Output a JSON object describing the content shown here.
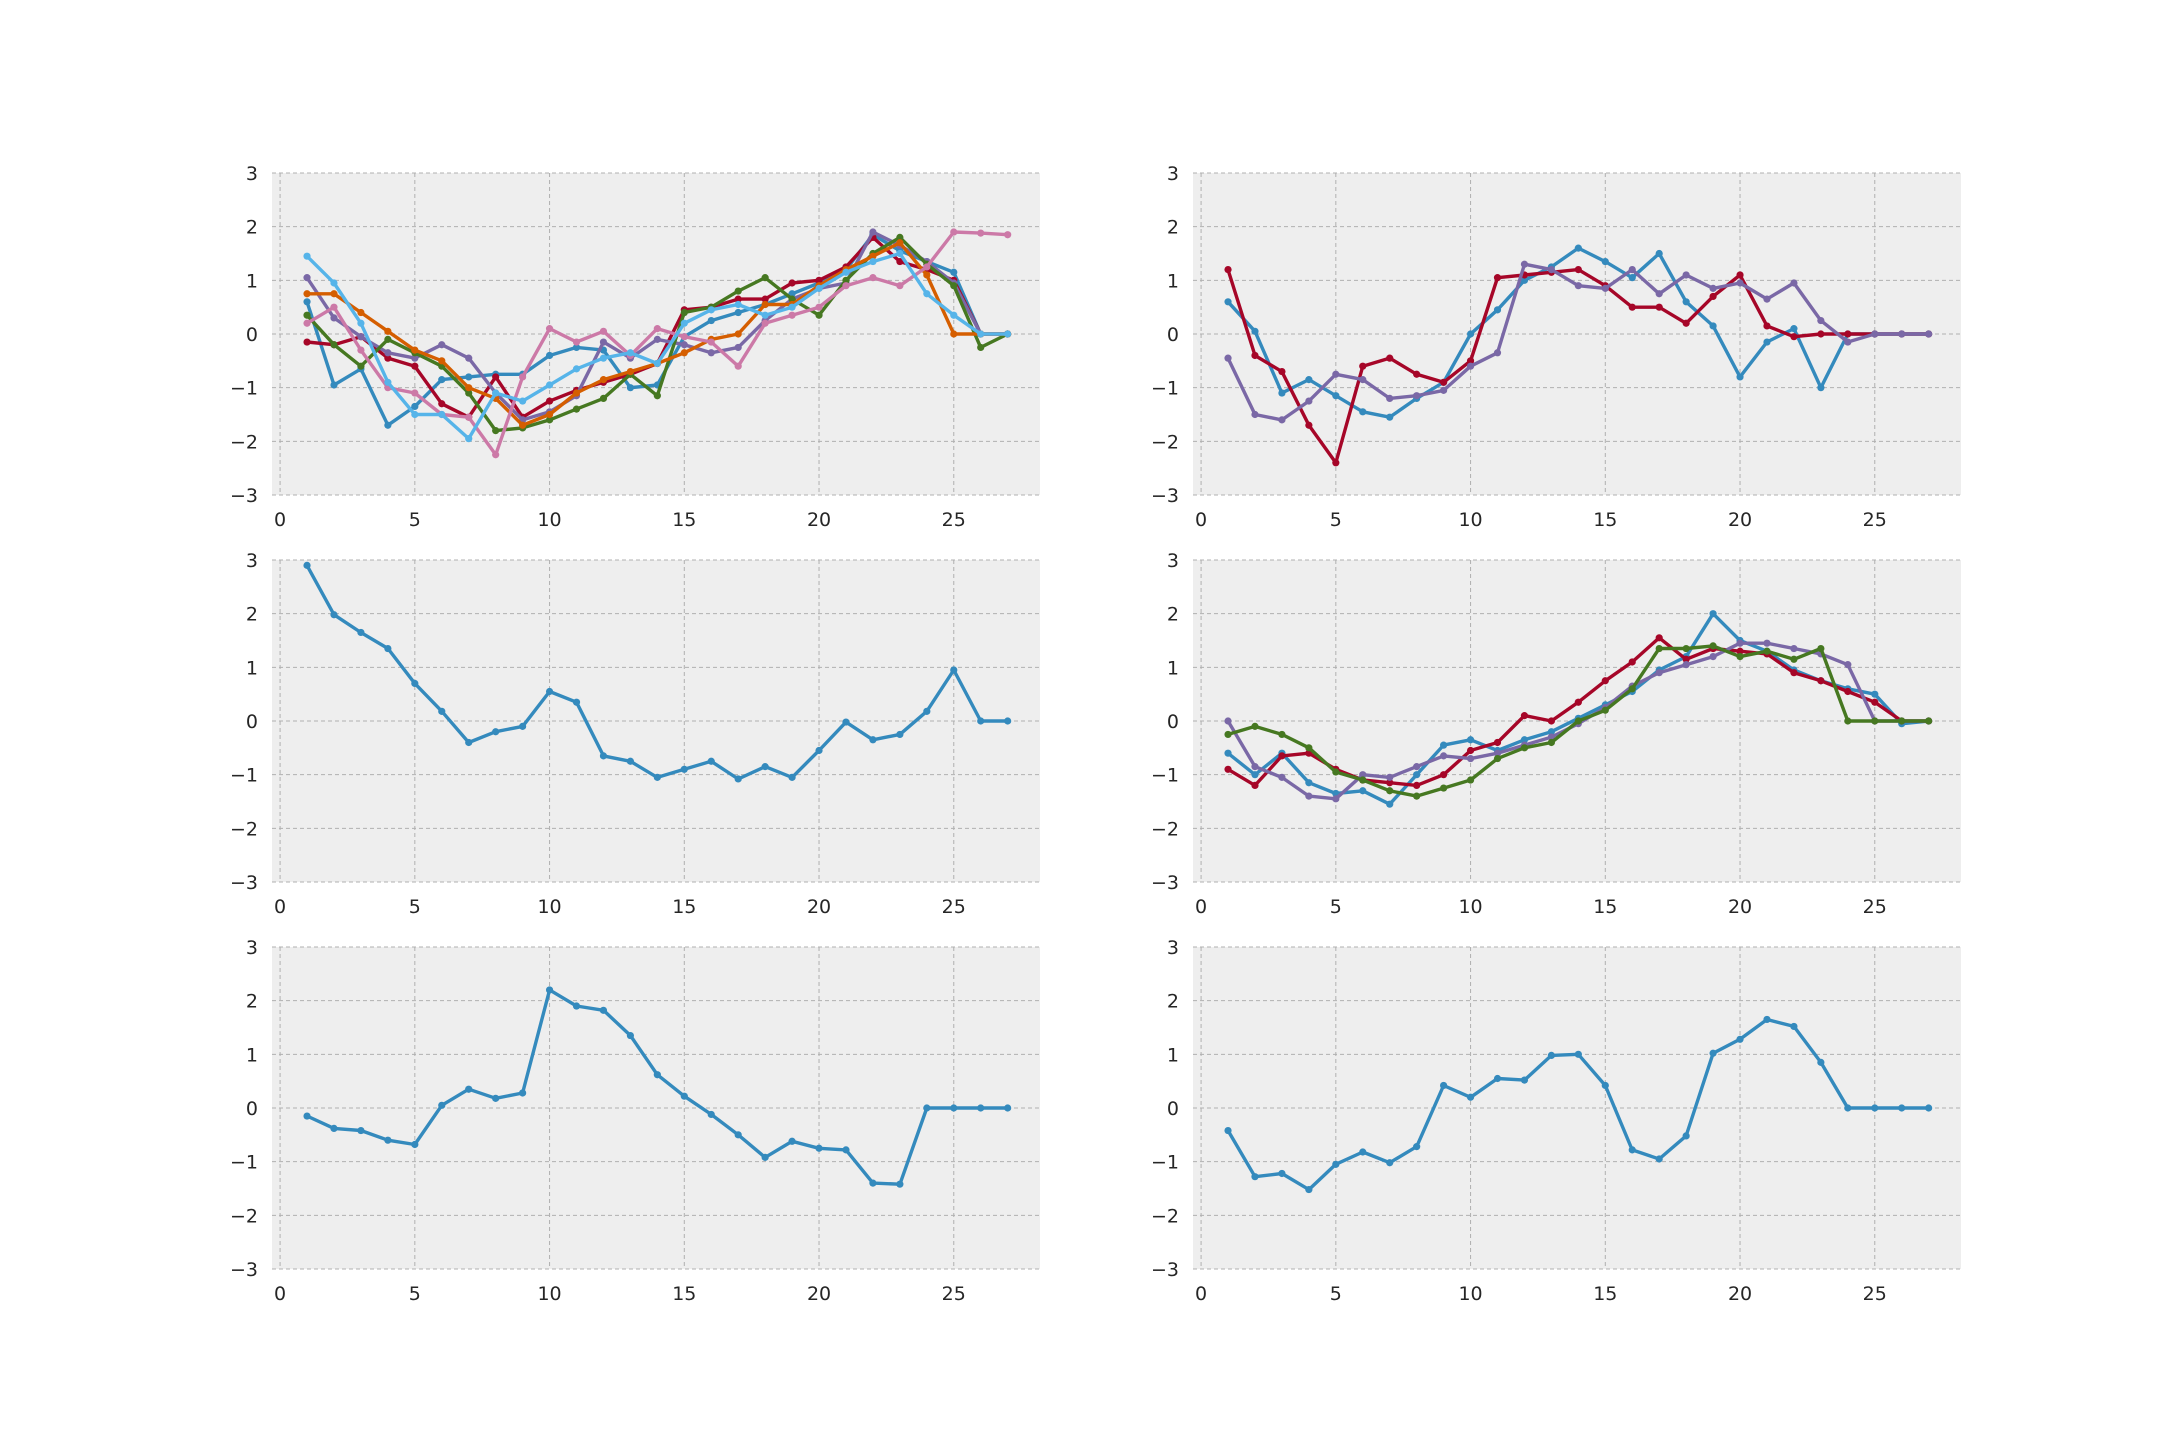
{
  "chart_data": [
    {
      "type": "line",
      "xlim": [
        -0.3,
        28.2
      ],
      "ylim": [
        -3,
        3
      ],
      "xticks": [
        0,
        5,
        10,
        15,
        20,
        25
      ],
      "yticks": [
        -3,
        -2,
        -1,
        0,
        1,
        2,
        3
      ],
      "grid": true,
      "series": [
        {
          "color": "#348ABD",
          "x": [
            1,
            2,
            3,
            4,
            5,
            6,
            7,
            8,
            9,
            10,
            11,
            12,
            13,
            14,
            15,
            16,
            17,
            18,
            19,
            20,
            21,
            22,
            23,
            24,
            25,
            26,
            27
          ],
          "y": [
            0.6,
            -0.95,
            -0.65,
            -1.7,
            -1.35,
            -0.85,
            -0.8,
            -0.75,
            -0.75,
            -0.4,
            -0.25,
            -0.3,
            -1.0,
            -0.95,
            -0.05,
            0.25,
            0.4,
            0.55,
            0.75,
            0.95,
            1.2,
            1.85,
            1.55,
            1.35,
            1.15,
            0.0,
            0.0
          ]
        },
        {
          "color": "#A60628",
          "x": [
            1,
            2,
            3,
            4,
            5,
            6,
            7,
            8,
            9,
            10,
            11,
            12,
            13,
            14,
            15,
            16,
            17,
            18,
            19,
            20,
            21,
            22,
            23,
            24,
            25,
            26,
            27
          ],
          "y": [
            -0.15,
            -0.2,
            -0.05,
            -0.45,
            -0.6,
            -1.3,
            -1.55,
            -0.8,
            -1.55,
            -1.25,
            -1.05,
            -0.9,
            -0.75,
            -0.55,
            0.45,
            0.5,
            0.65,
            0.65,
            0.95,
            1.0,
            1.25,
            1.8,
            1.35,
            1.2,
            1.0,
            0.0,
            0.0
          ]
        },
        {
          "color": "#7A68A6",
          "x": [
            1,
            2,
            3,
            4,
            5,
            6,
            7,
            8,
            9,
            10,
            11,
            12,
            13,
            14,
            15,
            16,
            17,
            18,
            19,
            20,
            21,
            22,
            23,
            24,
            25,
            26,
            27
          ],
          "y": [
            1.05,
            0.3,
            -0.05,
            -0.35,
            -0.45,
            -0.2,
            -0.45,
            -1.1,
            -1.6,
            -1.45,
            -1.15,
            -0.15,
            -0.45,
            -0.1,
            -0.2,
            -0.35,
            -0.25,
            0.25,
            0.65,
            0.85,
            0.95,
            1.9,
            1.65,
            1.35,
            0.95,
            0.0,
            0.0
          ]
        },
        {
          "color": "#467821",
          "x": [
            1,
            2,
            3,
            4,
            5,
            6,
            7,
            8,
            9,
            10,
            11,
            12,
            13,
            14,
            15,
            16,
            17,
            18,
            19,
            20,
            21,
            22,
            23,
            24,
            25,
            26,
            27
          ],
          "y": [
            0.35,
            -0.2,
            -0.6,
            -0.1,
            -0.35,
            -0.6,
            -1.1,
            -1.8,
            -1.75,
            -1.6,
            -1.4,
            -1.2,
            -0.75,
            -1.15,
            0.4,
            0.5,
            0.8,
            1.05,
            0.65,
            0.35,
            1.0,
            1.5,
            1.8,
            1.3,
            0.9,
            -0.25,
            0.0
          ]
        },
        {
          "color": "#D55E00",
          "x": [
            1,
            2,
            3,
            4,
            5,
            6,
            7,
            8,
            9,
            10,
            11,
            12,
            13,
            14,
            15,
            16,
            17,
            18,
            19,
            20,
            21,
            22,
            23,
            24,
            25,
            26,
            27
          ],
          "y": [
            0.75,
            0.75,
            0.4,
            0.05,
            -0.3,
            -0.5,
            -1.0,
            -1.2,
            -1.7,
            -1.5,
            -1.1,
            -0.85,
            -0.7,
            -0.55,
            -0.35,
            -0.1,
            0.0,
            0.55,
            0.55,
            0.9,
            1.2,
            1.45,
            1.7,
            1.1,
            0.0,
            0.0,
            0.0
          ]
        },
        {
          "color": "#CC79A7",
          "x": [
            1,
            2,
            3,
            4,
            5,
            6,
            7,
            8,
            9,
            10,
            11,
            12,
            13,
            14,
            15,
            16,
            17,
            18,
            19,
            20,
            21,
            22,
            23,
            24,
            25,
            26,
            27
          ],
          "y": [
            0.2,
            0.5,
            -0.3,
            -1.0,
            -1.1,
            -1.5,
            -1.55,
            -2.25,
            -0.8,
            0.1,
            -0.15,
            0.05,
            -0.4,
            0.1,
            -0.05,
            -0.15,
            -0.6,
            0.2,
            0.35,
            0.5,
            0.9,
            1.05,
            0.9,
            1.25,
            1.9,
            1.88,
            1.85
          ]
        },
        {
          "color": "#56B4E9",
          "x": [
            1,
            2,
            3,
            4,
            5,
            6,
            7,
            8,
            9,
            10,
            11,
            12,
            13,
            14,
            15,
            16,
            17,
            18,
            19,
            20,
            21,
            22,
            23,
            24,
            25,
            26,
            27
          ],
          "y": [
            1.45,
            0.95,
            0.2,
            -0.9,
            -1.5,
            -1.5,
            -1.95,
            -1.1,
            -1.25,
            -0.95,
            -0.65,
            -0.45,
            -0.35,
            -0.55,
            0.2,
            0.45,
            0.55,
            0.35,
            0.5,
            0.85,
            1.15,
            1.35,
            1.5,
            0.75,
            0.35,
            0.0,
            0.0
          ]
        }
      ]
    },
    {
      "type": "line",
      "xlim": [
        -0.3,
        28.2
      ],
      "ylim": [
        -3,
        3
      ],
      "xticks": [
        0,
        5,
        10,
        15,
        20,
        25
      ],
      "yticks": [
        -3,
        -2,
        -1,
        0,
        1,
        2,
        3
      ],
      "grid": true,
      "series": [
        {
          "color": "#348ABD",
          "x": [
            1,
            2,
            3,
            4,
            5,
            6,
            7,
            8,
            9,
            10,
            11,
            12,
            13,
            14,
            15,
            16,
            17,
            18,
            19,
            20,
            21,
            22,
            23,
            24,
            25,
            26,
            27
          ],
          "y": [
            0.6,
            0.05,
            -1.1,
            -0.85,
            -1.15,
            -1.45,
            -1.55,
            -1.2,
            -0.9,
            0.0,
            0.45,
            1.0,
            1.25,
            1.6,
            1.35,
            1.05,
            1.5,
            0.6,
            0.15,
            -0.8,
            -0.15,
            0.1,
            -1.0,
            0.0,
            0.0,
            0.0,
            0.0
          ]
        },
        {
          "color": "#A60628",
          "x": [
            1,
            2,
            3,
            4,
            5,
            6,
            7,
            8,
            9,
            10,
            11,
            12,
            13,
            14,
            15,
            16,
            17,
            18,
            19,
            20,
            21,
            22,
            23,
            24,
            25,
            26,
            27
          ],
          "y": [
            1.2,
            -0.4,
            -0.7,
            -1.7,
            -2.4,
            -0.6,
            -0.45,
            -0.75,
            -0.9,
            -0.5,
            1.05,
            1.1,
            1.15,
            1.2,
            0.9,
            0.5,
            0.5,
            0.2,
            0.7,
            1.1,
            0.15,
            -0.05,
            0.0,
            0.0,
            0.0,
            0.0,
            0.0
          ]
        },
        {
          "color": "#7A68A6",
          "x": [
            1,
            2,
            3,
            4,
            5,
            6,
            7,
            8,
            9,
            10,
            11,
            12,
            13,
            14,
            15,
            16,
            17,
            18,
            19,
            20,
            21,
            22,
            23,
            24,
            25,
            26,
            27
          ],
          "y": [
            -0.45,
            -1.5,
            -1.6,
            -1.25,
            -0.75,
            -0.85,
            -1.2,
            -1.15,
            -1.05,
            -0.6,
            -0.35,
            1.3,
            1.2,
            0.9,
            0.85,
            1.2,
            0.75,
            1.1,
            0.85,
            0.95,
            0.65,
            0.95,
            0.25,
            -0.15,
            0.0,
            0.0,
            0.0
          ]
        }
      ]
    },
    {
      "type": "line",
      "xlim": [
        -0.3,
        28.2
      ],
      "ylim": [
        -3,
        3
      ],
      "xticks": [
        0,
        5,
        10,
        15,
        20,
        25
      ],
      "yticks": [
        -3,
        -2,
        -1,
        0,
        1,
        2,
        3
      ],
      "grid": true,
      "series": [
        {
          "color": "#348ABD",
          "x": [
            1,
            2,
            3,
            4,
            5,
            6,
            7,
            8,
            9,
            10,
            11,
            12,
            13,
            14,
            15,
            16,
            17,
            18,
            19,
            20,
            21,
            22,
            23,
            24,
            25,
            26,
            27
          ],
          "y": [
            2.9,
            1.98,
            1.65,
            1.35,
            0.7,
            0.18,
            -0.4,
            -0.2,
            -0.1,
            0.55,
            0.35,
            -0.65,
            -0.75,
            -1.05,
            -0.9,
            -0.75,
            -1.08,
            -0.85,
            -1.05,
            -0.55,
            -0.02,
            -0.35,
            -0.25,
            0.18,
            0.95,
            0.0,
            0.0
          ]
        }
      ]
    },
    {
      "type": "line",
      "xlim": [
        -0.3,
        28.2
      ],
      "ylim": [
        -3,
        3
      ],
      "xticks": [
        0,
        5,
        10,
        15,
        20,
        25
      ],
      "yticks": [
        -3,
        -2,
        -1,
        0,
        1,
        2,
        3
      ],
      "grid": true,
      "series": [
        {
          "color": "#348ABD",
          "x": [
            1,
            2,
            3,
            4,
            5,
            6,
            7,
            8,
            9,
            10,
            11,
            12,
            13,
            14,
            15,
            16,
            17,
            18,
            19,
            20,
            21,
            22,
            23,
            24,
            25,
            26,
            27
          ],
          "y": [
            -0.6,
            -1.0,
            -0.6,
            -1.15,
            -1.35,
            -1.3,
            -1.55,
            -1.0,
            -0.45,
            -0.35,
            -0.55,
            -0.35,
            -0.2,
            0.05,
            0.3,
            0.55,
            0.95,
            1.2,
            2.0,
            1.5,
            1.3,
            0.95,
            0.75,
            0.6,
            0.5,
            -0.05,
            0.0
          ]
        },
        {
          "color": "#A60628",
          "x": [
            1,
            2,
            3,
            4,
            5,
            6,
            7,
            8,
            9,
            10,
            11,
            12,
            13,
            14,
            15,
            16,
            17,
            18,
            19,
            20,
            21,
            22,
            23,
            24,
            25,
            26,
            27
          ],
          "y": [
            -0.9,
            -1.2,
            -0.65,
            -0.6,
            -0.9,
            -1.1,
            -1.15,
            -1.2,
            -1.0,
            -0.55,
            -0.4,
            0.1,
            0.0,
            0.35,
            0.75,
            1.1,
            1.55,
            1.15,
            1.35,
            1.3,
            1.25,
            0.9,
            0.75,
            0.55,
            0.35,
            0.0,
            0.0
          ]
        },
        {
          "color": "#7A68A6",
          "x": [
            1,
            2,
            3,
            4,
            5,
            6,
            7,
            8,
            9,
            10,
            11,
            12,
            13,
            14,
            15,
            16,
            17,
            18,
            19,
            20,
            21,
            22,
            23,
            24,
            25,
            26,
            27
          ],
          "y": [
            0.0,
            -0.85,
            -1.05,
            -1.4,
            -1.45,
            -1.0,
            -1.05,
            -0.85,
            -0.65,
            -0.7,
            -0.6,
            -0.45,
            -0.3,
            -0.05,
            0.25,
            0.65,
            0.9,
            1.05,
            1.2,
            1.45,
            1.45,
            1.35,
            1.25,
            1.05,
            0.0,
            0.0,
            0.0
          ]
        },
        {
          "color": "#467821",
          "x": [
            1,
            2,
            3,
            4,
            5,
            6,
            7,
            8,
            9,
            10,
            11,
            12,
            13,
            14,
            15,
            16,
            17,
            18,
            19,
            20,
            21,
            22,
            23,
            24,
            25,
            26,
            27
          ],
          "y": [
            -0.25,
            -0.1,
            -0.25,
            -0.5,
            -0.95,
            -1.1,
            -1.3,
            -1.4,
            -1.25,
            -1.1,
            -0.7,
            -0.5,
            -0.4,
            0.0,
            0.2,
            0.6,
            1.35,
            1.35,
            1.4,
            1.2,
            1.3,
            1.15,
            1.35,
            0.0,
            0.0,
            0.0,
            0.0
          ]
        }
      ]
    },
    {
      "type": "line",
      "xlim": [
        -0.3,
        28.2
      ],
      "ylim": [
        -3,
        3
      ],
      "xticks": [
        0,
        5,
        10,
        15,
        20,
        25
      ],
      "yticks": [
        -3,
        -2,
        -1,
        0,
        1,
        2,
        3
      ],
      "grid": true,
      "series": [
        {
          "color": "#348ABD",
          "x": [
            1,
            2,
            3,
            4,
            5,
            6,
            7,
            8,
            9,
            10,
            11,
            12,
            13,
            14,
            15,
            16,
            17,
            18,
            19,
            20,
            21,
            22,
            23,
            24,
            25,
            26,
            27
          ],
          "y": [
            -0.15,
            -0.38,
            -0.42,
            -0.6,
            -0.68,
            0.05,
            0.35,
            0.18,
            0.28,
            2.2,
            1.9,
            1.82,
            1.35,
            0.62,
            0.22,
            -0.12,
            -0.5,
            -0.92,
            -0.62,
            -0.75,
            -0.78,
            -1.4,
            -1.42,
            0.0,
            0.0,
            0.0,
            0.0
          ]
        }
      ]
    },
    {
      "type": "line",
      "xlim": [
        -0.3,
        28.2
      ],
      "ylim": [
        -3,
        3
      ],
      "xticks": [
        0,
        5,
        10,
        15,
        20,
        25
      ],
      "yticks": [
        -3,
        -2,
        -1,
        0,
        1,
        2,
        3
      ],
      "grid": true,
      "series": [
        {
          "color": "#348ABD",
          "x": [
            1,
            2,
            3,
            4,
            5,
            6,
            7,
            8,
            9,
            10,
            11,
            12,
            13,
            14,
            15,
            16,
            17,
            18,
            19,
            20,
            21,
            22,
            23,
            24,
            25,
            26,
            27
          ],
          "y": [
            -0.42,
            -1.28,
            -1.22,
            -1.52,
            -1.05,
            -0.82,
            -1.02,
            -0.72,
            0.42,
            0.2,
            0.55,
            0.52,
            0.98,
            1.0,
            0.42,
            -0.78,
            -0.95,
            -0.52,
            1.02,
            1.28,
            1.65,
            1.52,
            0.85,
            0.0,
            0.0,
            0.0,
            0.0
          ]
        }
      ]
    }
  ]
}
